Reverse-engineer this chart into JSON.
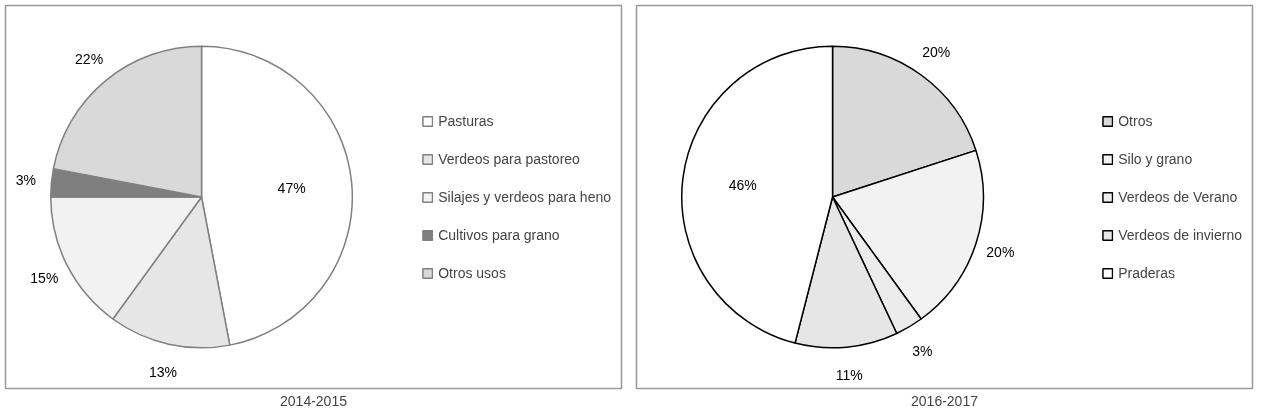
{
  "chart_data": [
    {
      "type": "pie",
      "title": "2014-2015",
      "categories": [
        "Pasturas",
        "Verdeos para pastoreo",
        "Silajes y verdeos para heno",
        "Cultivos para grano",
        "Otros usos"
      ],
      "values": [
        47,
        13,
        15,
        3,
        22
      ],
      "colors": [
        "#ffffff",
        "#e6e6e6",
        "#f2f2f2",
        "#7f7f7f",
        "#d9d9d9"
      ],
      "value_labels": [
        "47%",
        "13%",
        "15%",
        "3%",
        "22%"
      ],
      "legend": "right"
    },
    {
      "type": "pie",
      "title": "2016-2017",
      "categories": [
        "Otros",
        "Silo y grano",
        "Verdeos de Verano",
        "Verdeos de invierno",
        "Praderas"
      ],
      "values": [
        20,
        20,
        3,
        11,
        46
      ],
      "colors": [
        "#d9d9d9",
        "#f2f2f2",
        "#ececec",
        "#e6e6e6",
        "#ffffff"
      ],
      "value_labels": [
        "20%",
        "20%",
        "3%",
        "11%",
        "46%"
      ],
      "legend": "right"
    }
  ]
}
